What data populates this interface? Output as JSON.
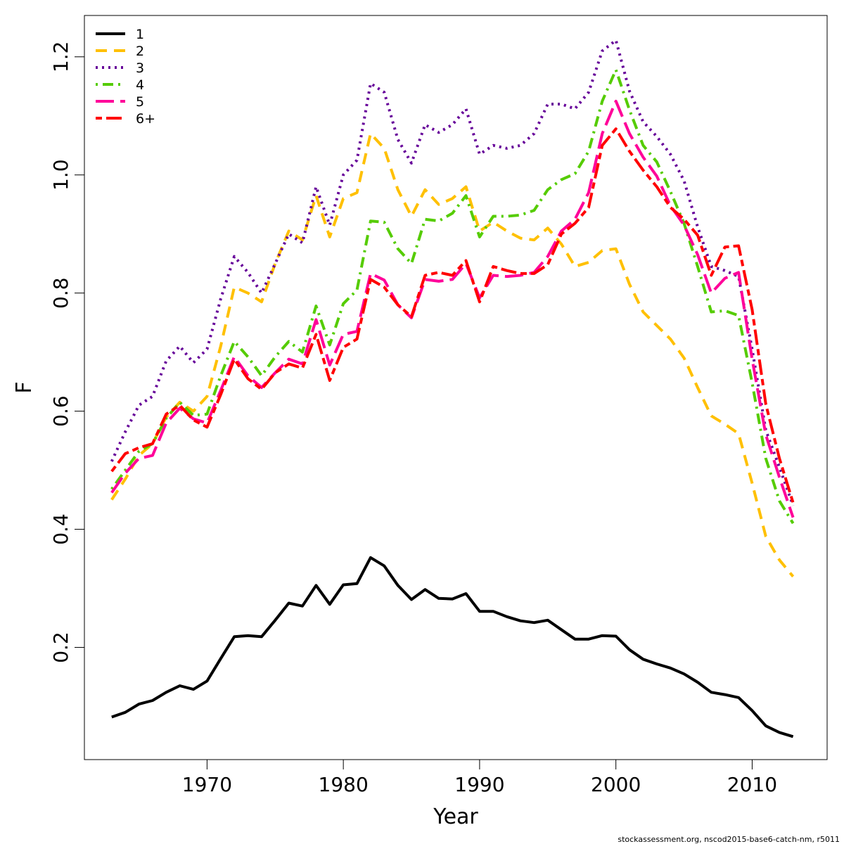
{
  "chart_data": {
    "type": "line",
    "title": "",
    "xlabel": "Year",
    "ylabel": "F",
    "xlim": [
      1961,
      2015.5
    ],
    "ylim": [
      0.01,
      1.27
    ],
    "xticks": [
      1970,
      1980,
      1990,
      2000,
      2010
    ],
    "yticks": [
      0.2,
      0.4,
      0.6,
      0.8,
      1.0,
      1.2
    ],
    "ytick_labels": [
      "0.2",
      "0.4",
      "0.6",
      "0.8",
      "1.0",
      "1.2"
    ],
    "grid": false,
    "legend_position": "top-left",
    "x": [
      1963,
      1964,
      1965,
      1966,
      1967,
      1968,
      1969,
      1970,
      1971,
      1972,
      1973,
      1974,
      1975,
      1976,
      1977,
      1978,
      1979,
      1980,
      1981,
      1982,
      1983,
      1984,
      1985,
      1986,
      1987,
      1988,
      1989,
      1990,
      1991,
      1992,
      1993,
      1994,
      1995,
      1996,
      1997,
      1998,
      1999,
      2000,
      2001,
      2002,
      2003,
      2004,
      2005,
      2006,
      2007,
      2008,
      2009,
      2010,
      2011,
      2012,
      2013
    ],
    "series": [
      {
        "name": "1",
        "color": "#000000",
        "dash": "solid",
        "values": [
          0.082,
          0.09,
          0.104,
          0.11,
          0.124,
          0.135,
          0.129,
          0.143,
          0.181,
          0.218,
          0.22,
          0.218,
          0.246,
          0.275,
          0.27,
          0.305,
          0.273,
          0.306,
          0.308,
          0.352,
          0.338,
          0.305,
          0.281,
          0.298,
          0.283,
          0.282,
          0.291,
          0.261,
          0.261,
          0.252,
          0.245,
          0.242,
          0.246,
          0.23,
          0.214,
          0.214,
          0.22,
          0.219,
          0.196,
          0.18,
          0.172,
          0.165,
          0.155,
          0.141,
          0.124,
          0.12,
          0.115,
          0.093,
          0.067,
          0.056,
          0.049
        ]
      },
      {
        "name": "2",
        "color": "#FFC000",
        "dash": "dashed",
        "values": [
          0.45,
          0.485,
          0.525,
          0.545,
          0.59,
          0.615,
          0.6,
          0.625,
          0.71,
          0.81,
          0.8,
          0.785,
          0.85,
          0.905,
          0.89,
          0.965,
          0.895,
          0.96,
          0.97,
          1.07,
          1.045,
          0.975,
          0.93,
          0.975,
          0.95,
          0.96,
          0.98,
          0.905,
          0.92,
          0.905,
          0.893,
          0.89,
          0.91,
          0.883,
          0.845,
          0.852,
          0.872,
          0.875,
          0.815,
          0.768,
          0.745,
          0.722,
          0.69,
          0.64,
          0.592,
          0.578,
          0.562,
          0.478,
          0.388,
          0.348,
          0.32
        ]
      },
      {
        "name": "3",
        "color": "#660099",
        "dash": "dotted",
        "values": [
          0.515,
          0.565,
          0.61,
          0.625,
          0.685,
          0.71,
          0.682,
          0.705,
          0.79,
          0.862,
          0.835,
          0.8,
          0.85,
          0.9,
          0.885,
          0.98,
          0.915,
          1.0,
          1.025,
          1.155,
          1.14,
          1.06,
          1.02,
          1.085,
          1.072,
          1.085,
          1.112,
          1.035,
          1.05,
          1.045,
          1.05,
          1.07,
          1.12,
          1.12,
          1.112,
          1.14,
          1.21,
          1.228,
          1.142,
          1.09,
          1.065,
          1.035,
          0.99,
          0.912,
          0.845,
          0.838,
          0.828,
          0.705,
          0.568,
          0.505,
          0.44
        ]
      },
      {
        "name": "4",
        "color": "#55CC00",
        "dash": "dashdot",
        "values": [
          0.468,
          0.5,
          0.532,
          0.545,
          0.588,
          0.615,
          0.593,
          0.595,
          0.66,
          0.718,
          0.692,
          0.66,
          0.692,
          0.718,
          0.7,
          0.778,
          0.712,
          0.782,
          0.805,
          0.922,
          0.92,
          0.875,
          0.85,
          0.925,
          0.922,
          0.935,
          0.965,
          0.895,
          0.93,
          0.93,
          0.932,
          0.94,
          0.975,
          0.992,
          1.002,
          1.04,
          1.125,
          1.178,
          1.11,
          1.05,
          1.022,
          0.972,
          0.918,
          0.845,
          0.768,
          0.77,
          0.762,
          0.648,
          0.52,
          0.448,
          0.41
        ]
      },
      {
        "name": "5",
        "color": "#FF0099",
        "dash": "longdash",
        "values": [
          0.462,
          0.495,
          0.52,
          0.525,
          0.58,
          0.605,
          0.587,
          0.58,
          0.635,
          0.692,
          0.66,
          0.64,
          0.665,
          0.688,
          0.68,
          0.755,
          0.678,
          0.73,
          0.735,
          0.833,
          0.822,
          0.78,
          0.758,
          0.823,
          0.82,
          0.823,
          0.85,
          0.792,
          0.83,
          0.828,
          0.83,
          0.835,
          0.862,
          0.905,
          0.925,
          0.97,
          1.07,
          1.125,
          1.07,
          1.03,
          0.998,
          0.948,
          0.915,
          0.865,
          0.8,
          0.825,
          0.835,
          0.688,
          0.56,
          0.488,
          0.42
        ]
      },
      {
        "name": "6+",
        "color": "#FF0000",
        "dash": "twodash",
        "values": [
          0.498,
          0.528,
          0.538,
          0.545,
          0.595,
          0.61,
          0.585,
          0.573,
          0.628,
          0.688,
          0.655,
          0.637,
          0.665,
          0.68,
          0.673,
          0.73,
          0.652,
          0.708,
          0.722,
          0.823,
          0.81,
          0.78,
          0.76,
          0.83,
          0.835,
          0.83,
          0.855,
          0.785,
          0.845,
          0.838,
          0.833,
          0.833,
          0.848,
          0.9,
          0.918,
          0.945,
          1.05,
          1.078,
          1.04,
          1.008,
          0.98,
          0.945,
          0.925,
          0.898,
          0.83,
          0.878,
          0.88,
          0.772,
          0.612,
          0.52,
          0.445
        ]
      }
    ]
  },
  "footer_text": "stockassessment.org, nscod2015-base6-catch-nm, r5011"
}
